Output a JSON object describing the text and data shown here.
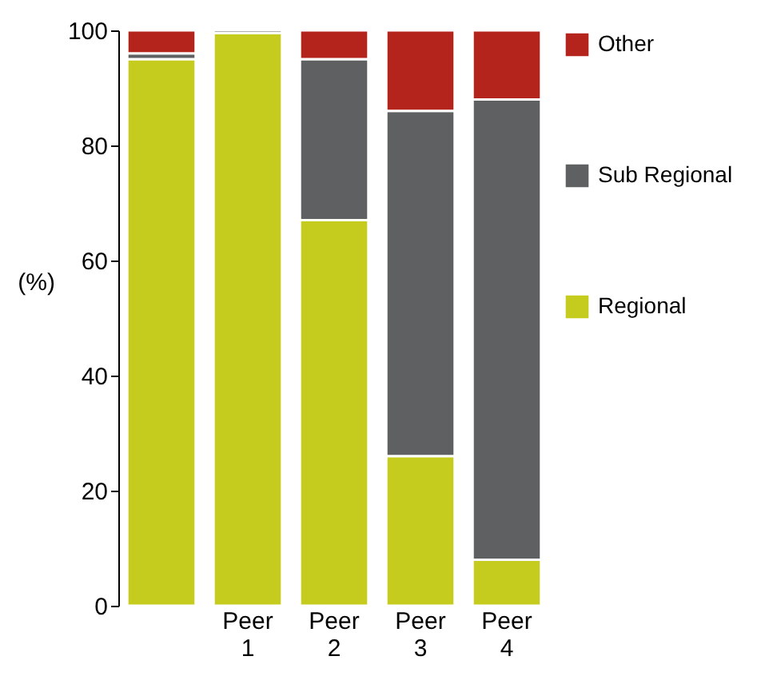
{
  "chart_data": {
    "type": "bar",
    "stacked": true,
    "ylabel": "(%)",
    "categories": [
      null,
      "Peer 1",
      "Peer 2",
      "Peer 3",
      "Peer 4"
    ],
    "series": [
      {
        "name": "Regional",
        "color": "#c5cc1e",
        "values": [
          95,
          99.5,
          67,
          26,
          8
        ]
      },
      {
        "name": "Sub Regional",
        "color": "#5f6062",
        "values": [
          1,
          0.5,
          28,
          60,
          80
        ]
      },
      {
        "name": "Other",
        "color": "#b5241c",
        "values": [
          4,
          null,
          5,
          14,
          12
        ]
      }
    ],
    "ylim": [
      0,
      100
    ],
    "yticks": [
      0,
      20,
      40,
      60,
      80,
      100
    ],
    "grid": false,
    "legend": "right"
  }
}
